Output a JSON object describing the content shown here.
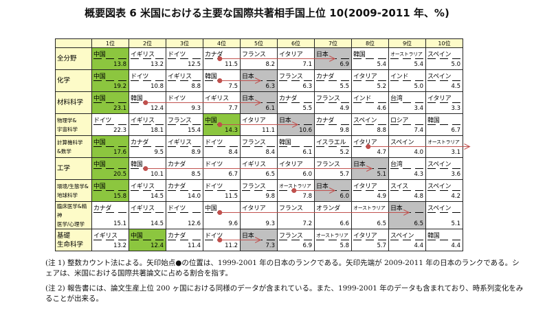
{
  "title": "概要図表 6  米国における主要な国際共著相手国上位 10(2009-2011 年、%)",
  "ranks": [
    "1位",
    "2位",
    "3位",
    "4位",
    "5位",
    "6位",
    "7位",
    "8位",
    "9位",
    "10位"
  ],
  "colors": {
    "china_highlight": "#8cc63f",
    "japan_highlight": "#c0c0c0",
    "arrow": "#c0504d",
    "header": "#fdfbc8"
  },
  "rows": [
    {
      "field": "全分野",
      "japan_rank_1999_2001": 4,
      "japan_rank_2009_2011": 7,
      "cells": [
        [
          "中国",
          "13.8"
        ],
        [
          "イギリス",
          "13.2"
        ],
        [
          "ドイツ",
          "12.5"
        ],
        [
          "カナダ",
          "11.5"
        ],
        [
          "フランス",
          "8.2"
        ],
        [
          "イタリア",
          "7.1"
        ],
        [
          "日本",
          "6.9"
        ],
        [
          "韓国",
          "5.4"
        ],
        [
          "オーストラリア",
          "5.4"
        ],
        [
          "スペイン",
          "5.0"
        ]
      ],
      "china_highlight": true
    },
    {
      "field": "化学",
      "japan_rank_1999_2001": 4,
      "japan_rank_2009_2011": 5,
      "cells": [
        [
          "中国",
          "19.2"
        ],
        [
          "ドイツ",
          "10.8"
        ],
        [
          "イギリス",
          "8.8"
        ],
        [
          "韓国",
          "7.5"
        ],
        [
          "日本",
          "6.3"
        ],
        [
          "フランス",
          "6.3"
        ],
        [
          "カナダ",
          "5.5"
        ],
        [
          "イタリア",
          "5.2"
        ],
        [
          "インド",
          "5.0"
        ],
        [
          "スペイン",
          "4.5"
        ]
      ],
      "china_highlight": true
    },
    {
      "field": "材料科学",
      "japan_rank_1999_2001": 2,
      "japan_rank_2009_2011": 5,
      "cells": [
        [
          "中国",
          "23.1"
        ],
        [
          "韓国",
          "12.4"
        ],
        [
          "ドイツ",
          "9.3"
        ],
        [
          "イギリス",
          "7.7"
        ],
        [
          "日本",
          "6.1"
        ],
        [
          "カナダ",
          "5.5"
        ],
        [
          "フランス",
          "4.9"
        ],
        [
          "インド",
          "4.6"
        ],
        [
          "台湾",
          "3.4"
        ],
        [
          "イタリア",
          "3.3"
        ]
      ],
      "china_highlight": true
    },
    {
      "field": "物理学&\n宇宙科学",
      "japan_rank_1999_2001": 4,
      "japan_rank_2009_2011": 6,
      "cells": [
        [
          "ドイツ",
          "22.3"
        ],
        [
          "イギリス",
          "18.1"
        ],
        [
          "フランス",
          "15.4"
        ],
        [
          "中国",
          "14.3"
        ],
        [
          "イタリア",
          "11.1"
        ],
        [
          "日本",
          "10.6"
        ],
        [
          "カナダ",
          "9.8"
        ],
        [
          "スペイン",
          "8.8"
        ],
        [
          "ロシア",
          "7.4"
        ],
        [
          "韓国",
          "6.7"
        ]
      ],
      "china_highlight": true
    },
    {
      "field": "計算機科学\n&数学",
      "japan_rank_1999_2001": 8,
      "japan_rank_2009_2011": 11,
      "cells": [
        [
          "中国",
          "17.6"
        ],
        [
          "カナダ",
          "9.5"
        ],
        [
          "イギリス",
          "8.9"
        ],
        [
          "ドイツ",
          "8.4"
        ],
        [
          "フランス",
          "8.4"
        ],
        [
          "韓国",
          "6.1"
        ],
        [
          "イスラエル",
          "5.2"
        ],
        [
          "イタリア",
          "4.7"
        ],
        [
          "スペイン",
          "4.0"
        ],
        [
          "オーストラリア",
          "3.1"
        ]
      ],
      "china_highlight": true
    },
    {
      "field": "工学",
      "japan_rank_1999_2001": 2,
      "japan_rank_2009_2011": 8,
      "cells": [
        [
          "中国",
          "20.5"
        ],
        [
          "韓国",
          "10.1"
        ],
        [
          "カナダ",
          "8.5"
        ],
        [
          "ドイツ",
          "6.7"
        ],
        [
          "イギリス",
          "6.5"
        ],
        [
          "イタリア",
          "6.0"
        ],
        [
          "フランス",
          "5.7"
        ],
        [
          "日本",
          "5.1"
        ],
        [
          "台湾",
          "4.3"
        ],
        [
          "スペイン",
          "3.6"
        ]
      ],
      "china_highlight": true
    },
    {
      "field": "環境/生態学&\n地球科学",
      "japan_rank_1999_2001": 6,
      "japan_rank_2009_2011": 7,
      "cells": [
        [
          "中国",
          "15.8"
        ],
        [
          "イギリス",
          "14.5"
        ],
        [
          "カナダ",
          "14.0"
        ],
        [
          "ドイツ",
          "11.5"
        ],
        [
          "フランス",
          "9.8"
        ],
        [
          "オーストラリア",
          "7.8"
        ],
        [
          "日本",
          "6.0"
        ],
        [
          "イタリア",
          "4.9"
        ],
        [
          "スイス",
          "4.8"
        ],
        [
          "スペイン",
          "4.2"
        ]
      ],
      "china_highlight": true
    },
    {
      "field": "臨床医学&精神\n医学/心理学",
      "japan_rank_1999_2001": 4,
      "japan_rank_2009_2011": 9,
      "cells": [
        [
          "カナダ",
          "15.1"
        ],
        [
          "イギリス",
          "14.5"
        ],
        [
          "ドイツ",
          "12.6"
        ],
        [
          "中国",
          "9.6"
        ],
        [
          "イタリア",
          "9.3"
        ],
        [
          "フランス",
          "7.2"
        ],
        [
          "オランダ",
          "6.6"
        ],
        [
          "オーストラリア",
          "6.5"
        ],
        [
          "日本",
          "6.5"
        ],
        [
          "スペイン",
          "5.1"
        ]
      ],
      "china_highlight": false
    },
    {
      "field": "基礎\n生命科学",
      "japan_rank_1999_2001": 4,
      "japan_rank_2009_2011": 5,
      "cells": [
        [
          "イギリス",
          "13.2"
        ],
        [
          "中国",
          "12.4"
        ],
        [
          "カナダ",
          "11.4"
        ],
        [
          "ドイツ",
          "11.2"
        ],
        [
          "日本",
          "7.3"
        ],
        [
          "フランス",
          "6.9"
        ],
        [
          "オーストラリア",
          "5.8"
        ],
        [
          "イタリア",
          "5.7"
        ],
        [
          "スペイン",
          "4.4"
        ],
        [
          "韓国",
          "4.4"
        ]
      ],
      "china_highlight": true
    }
  ],
  "notes": [
    "(注 1) 整数カウント法による。矢印始点●の位置は、1999-2001 年の日本のランクである。矢印先端が 2009-2011 年の日本のランクである。シェアは、米国における国際共著論文に占める割合を指す。",
    "(注 2) 報告書には、論文生産上位 200 ヶ国における同様のデータが含まれている。また、1999-2001 年のデータも含まれており、時系列変化をみることが出来る。"
  ]
}
